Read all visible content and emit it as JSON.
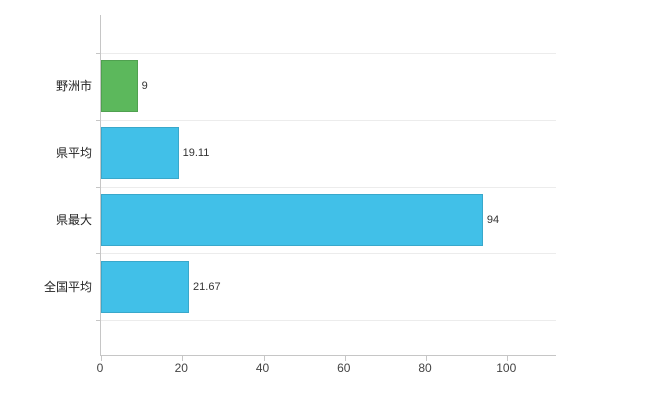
{
  "chart_data": {
    "type": "bar",
    "orientation": "horizontal",
    "title": "",
    "xlabel": "",
    "ylabel": "",
    "categories": [
      "野洲市",
      "県平均",
      "県最大",
      "全国平均"
    ],
    "values": [
      9,
      19.11,
      94,
      21.67
    ],
    "value_labels": [
      "9",
      "19.11",
      "94",
      "21.67"
    ],
    "bar_colors": [
      "#5CB85C",
      "#41C0E8",
      "#41C0E8",
      "#41C0E8"
    ],
    "x_ticks": [
      0,
      20,
      40,
      60,
      80,
      100
    ],
    "xlim": [
      0,
      112
    ],
    "grid": true,
    "legend_position": "none",
    "colors": {
      "axis": "#c6c6c6",
      "gridline": "#ececec",
      "highlight_bar": "#5CB85C",
      "default_bar": "#41C0E8",
      "background": "#ffffff"
    }
  }
}
